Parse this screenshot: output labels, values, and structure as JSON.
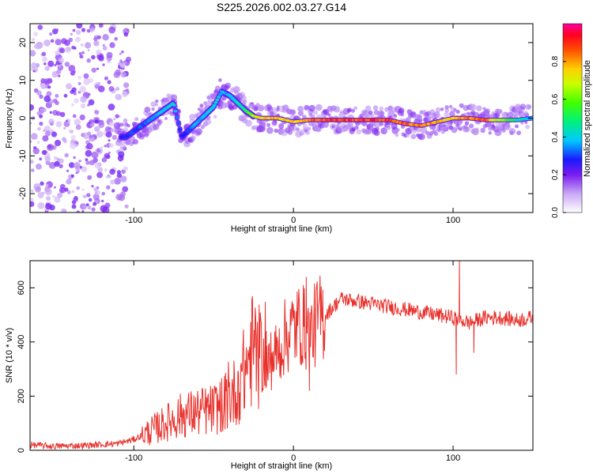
{
  "figure_title": "S225.2026.002.03.27.G14",
  "chart_data": [
    {
      "type": "heatmap",
      "title": "S225.2026.002.03.27.G14",
      "xlabel": "Height of straight line (km)",
      "ylabel": "Frequency (Hz)",
      "xlim": [
        -165,
        150
      ],
      "ylim": [
        -25,
        25
      ],
      "x_ticks": [
        -100,
        0,
        100
      ],
      "y_ticks": [
        -20,
        -10,
        0,
        10,
        20
      ],
      "colorbar": {
        "label": "Normalized spectral amplitude",
        "range": [
          0,
          1
        ],
        "ticks": [
          0.0,
          0.2,
          0.4,
          0.6,
          0.8
        ]
      },
      "dominant_ridge": {
        "x": [
          -105,
          -95,
          -85,
          -75,
          -70,
          -60,
          -50,
          -45,
          -40,
          -35,
          -30,
          -25,
          -20,
          -10,
          0,
          10,
          20,
          40,
          60,
          70,
          80,
          90,
          100,
          110,
          120,
          130,
          140,
          150
        ],
        "y": [
          -5,
          -2,
          1,
          4,
          -5,
          -1,
          3,
          7,
          6,
          4,
          2,
          0.5,
          0,
          0,
          -1,
          -0.5,
          -0.5,
          -0.5,
          -0.5,
          -1.5,
          -2,
          -1,
          0,
          0,
          -0.5,
          -0.5,
          -0.5,
          0
        ],
        "amplitude": [
          0.3,
          0.35,
          0.4,
          0.45,
          0.3,
          0.4,
          0.45,
          0.4,
          0.4,
          0.45,
          0.55,
          0.7,
          0.8,
          0.85,
          0.8,
          0.9,
          0.95,
          0.95,
          0.95,
          0.9,
          0.9,
          0.85,
          0.8,
          0.9,
          0.9,
          0.7,
          0.5,
          0.4
        ]
      }
    },
    {
      "type": "line",
      "title": "",
      "xlabel": "Height of straight line (km)",
      "ylabel": "SNR (10 * v/v)",
      "xlim": [
        -165,
        150
      ],
      "ylim": [
        0,
        700
      ],
      "x_ticks": [
        -100,
        0,
        100
      ],
      "y_ticks": [
        0,
        200,
        400,
        600
      ],
      "line_color": "#e8312c",
      "series": [
        {
          "name": "SNR",
          "x": [
            -165,
            -150,
            -130,
            -110,
            -100,
            -90,
            -80,
            -70,
            -60,
            -50,
            -45,
            -40,
            -35,
            -30,
            -25,
            -20,
            -15,
            -10,
            -5,
            0,
            5,
            10,
            15,
            20,
            25,
            30,
            40,
            50,
            60,
            70,
            80,
            90,
            100,
            105,
            110,
            115,
            120,
            130,
            140,
            150
          ],
          "y": [
            20,
            15,
            18,
            25,
            40,
            70,
            100,
            130,
            140,
            150,
            170,
            190,
            230,
            300,
            380,
            320,
            330,
            360,
            420,
            450,
            470,
            420,
            480,
            500,
            530,
            560,
            550,
            540,
            530,
            520,
            510,
            500,
            490,
            480,
            470,
            480,
            490,
            490,
            480,
            490
          ]
        }
      ],
      "spikes": [
        {
          "x": -17,
          "y": 440
        },
        {
          "x": 8,
          "y": 640
        },
        {
          "x": 10,
          "y": 220
        },
        {
          "x": 104,
          "y": 700
        },
        {
          "x": 102,
          "y": 280
        },
        {
          "x": 113,
          "y": 360
        }
      ]
    }
  ]
}
